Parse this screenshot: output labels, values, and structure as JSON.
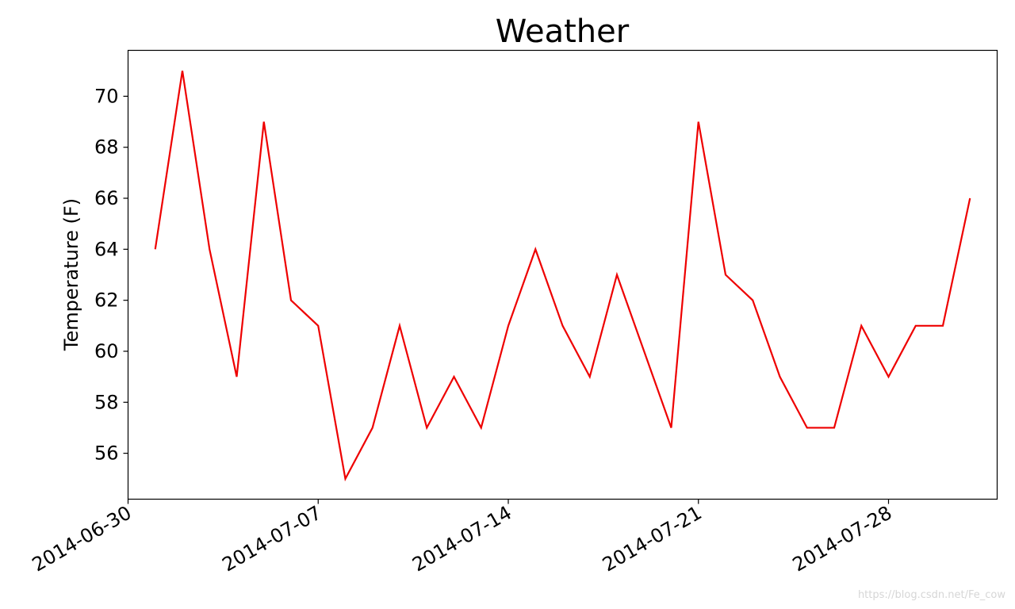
{
  "chart_data": {
    "type": "line",
    "title": "Weather",
    "xlabel": "",
    "ylabel": "Temperature (F)",
    "x": [
      "2014-07-01",
      "2014-07-02",
      "2014-07-03",
      "2014-07-04",
      "2014-07-05",
      "2014-07-06",
      "2014-07-07",
      "2014-07-08",
      "2014-07-09",
      "2014-07-10",
      "2014-07-11",
      "2014-07-12",
      "2014-07-13",
      "2014-07-14",
      "2014-07-15",
      "2014-07-16",
      "2014-07-17",
      "2014-07-18",
      "2014-07-19",
      "2014-07-20",
      "2014-07-21",
      "2014-07-22",
      "2014-07-23",
      "2014-07-24",
      "2014-07-25",
      "2014-07-26",
      "2014-07-27",
      "2014-07-28",
      "2014-07-29",
      "2014-07-30",
      "2014-07-31"
    ],
    "series": [
      {
        "values": [
          64,
          71,
          64,
          59,
          69,
          62,
          61,
          55,
          57,
          61,
          57,
          59,
          57,
          61,
          64,
          61,
          59,
          63,
          60,
          57,
          69,
          63,
          62,
          59,
          57,
          57,
          61,
          59,
          61,
          61,
          66
        ],
        "color": "#ee0000"
      }
    ],
    "xlim": [
      "2014-06-30",
      "2014-08-01"
    ],
    "ylim": [
      54.2,
      71.8
    ],
    "xticks": [
      "2014-06-30",
      "2014-07-07",
      "2014-07-14",
      "2014-07-21",
      "2014-07-28"
    ],
    "yticks": [
      56,
      58,
      60,
      62,
      64,
      66,
      68,
      70
    ],
    "grid": false,
    "legend": "none"
  },
  "watermark": "https://blog.csdn.net/Fe_cow"
}
